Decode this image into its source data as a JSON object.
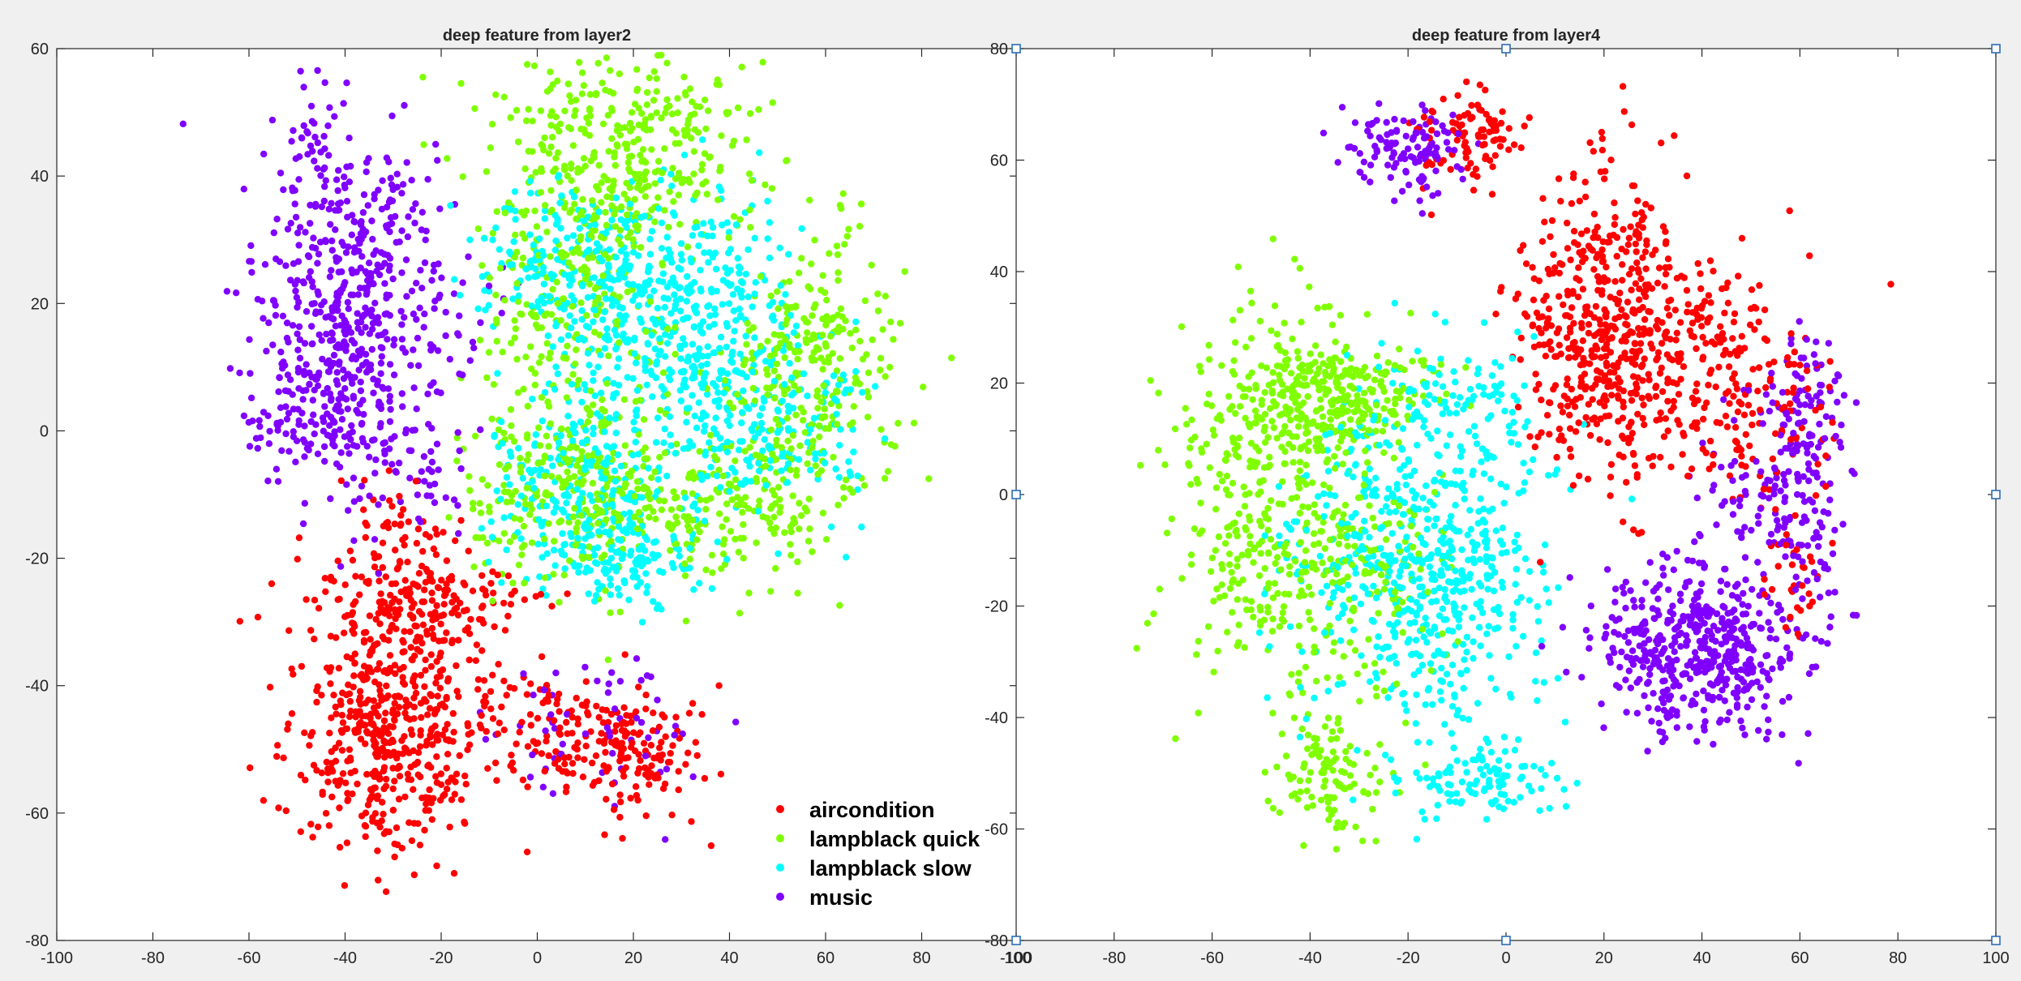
{
  "chart_data": [
    {
      "type": "scatter",
      "title": "deep feature from layer2",
      "xlabel": "",
      "ylabel": "",
      "xlim": [
        -100,
        100
      ],
      "ylim": [
        -80,
        60
      ],
      "xticks": [
        -100,
        -80,
        -60,
        -40,
        -20,
        0,
        20,
        40,
        60,
        80,
        100
      ],
      "yticks": [
        -80,
        -60,
        -40,
        -20,
        0,
        20,
        40,
        60
      ],
      "grid": false,
      "legend": {
        "placement": "bottom-right",
        "entries": [
          "aircondition",
          "lampblack quick",
          "lampblack slow",
          "music"
        ]
      },
      "series": [
        {
          "name": "aircondition",
          "color": "#ff0000",
          "clusters": [
            {
              "center": [
                -31,
                -47
              ],
              "spread": [
                10,
                10
              ],
              "count": 520
            },
            {
              "center": [
                -25,
                -27
              ],
              "spread": [
                11,
                5
              ],
              "count": 190
            },
            {
              "center": [
                -28,
                -14
              ],
              "spread": [
                6,
                4
              ],
              "count": 30
            },
            {
              "center": [
                20,
                -50
              ],
              "spread": [
                8,
                5
              ],
              "count": 150
            },
            {
              "center": [
                2,
                -46
              ],
              "spread": [
                6,
                6
              ],
              "count": 70
            }
          ]
        },
        {
          "name": "lampblack quick",
          "color": "#80ff00",
          "clusters": [
            {
              "center": [
                17,
                43
              ],
              "spread": [
                14,
                9
              ],
              "count": 400
            },
            {
              "center": [
                8,
                -8
              ],
              "spread": [
                12,
                8
              ],
              "count": 320
            },
            {
              "center": [
                57,
                9
              ],
              "spread": [
                9,
                11
              ],
              "count": 280
            },
            {
              "center": [
                4,
                20
              ],
              "spread": [
                8,
                8
              ],
              "count": 150
            },
            {
              "center": [
                40,
                -12
              ],
              "spread": [
                10,
                6
              ],
              "count": 150
            }
          ]
        },
        {
          "name": "lampblack slow",
          "color": "#00ffff",
          "clusters": [
            {
              "center": [
                28,
                18
              ],
              "spread": [
                13,
                9
              ],
              "count": 480
            },
            {
              "center": [
                10,
                -10
              ],
              "spread": [
                10,
                7
              ],
              "count": 230
            },
            {
              "center": [
                47,
                0
              ],
              "spread": [
                11,
                7
              ],
              "count": 200
            },
            {
              "center": [
                5,
                28
              ],
              "spread": [
                9,
                6
              ],
              "count": 150
            },
            {
              "center": [
                18,
                -20
              ],
              "spread": [
                8,
                4
              ],
              "count": 120
            }
          ]
        },
        {
          "name": "music",
          "color": "#8000ff",
          "clusters": [
            {
              "center": [
                -38,
                18
              ],
              "spread": [
                11,
                13
              ],
              "count": 560
            },
            {
              "center": [
                -48,
                2
              ],
              "spread": [
                6,
                6
              ],
              "count": 90
            },
            {
              "center": [
                -48,
                46
              ],
              "spread": [
                3,
                4
              ],
              "count": 25
            },
            {
              "center": [
                15,
                -48
              ],
              "spread": [
                12,
                7
              ],
              "count": 60
            },
            {
              "center": [
                -25,
                -8
              ],
              "spread": [
                6,
                5
              ],
              "count": 30
            }
          ]
        }
      ]
    },
    {
      "type": "scatter",
      "title": "deep feature from layer4",
      "xlabel": "",
      "ylabel": "",
      "xlim": [
        -100,
        100
      ],
      "ylim": [
        -80,
        80
      ],
      "xticks": [
        -100,
        -80,
        -60,
        -40,
        -20,
        0,
        20,
        40,
        60,
        80,
        100
      ],
      "yticks": [
        -80,
        -60,
        -40,
        -20,
        0,
        20,
        40,
        60,
        80
      ],
      "grid": false,
      "legend": null,
      "series": [
        {
          "name": "aircondition",
          "color": "#ff0000",
          "clusters": [
            {
              "center": [
                20,
                30
              ],
              "spread": [
                9,
                13
              ],
              "count": 500
            },
            {
              "center": [
                45,
                22
              ],
              "spread": [
                10,
                10
              ],
              "count": 220
            },
            {
              "center": [
                -8,
                64
              ],
              "spread": [
                5,
                4
              ],
              "count": 100
            },
            {
              "center": [
                59,
                -10
              ],
              "spread": [
                4,
                10
              ],
              "count": 40
            }
          ]
        },
        {
          "name": "lampblack quick",
          "color": "#80ff00",
          "clusters": [
            {
              "center": [
                -47,
                0
              ],
              "spread": [
                10,
                18
              ],
              "count": 450
            },
            {
              "center": [
                -35,
                18
              ],
              "spread": [
                10,
                5
              ],
              "count": 240
            },
            {
              "center": [
                -36,
                -50
              ],
              "spread": [
                5,
                6
              ],
              "count": 110
            },
            {
              "center": [
                -25,
                -15
              ],
              "spread": [
                8,
                10
              ],
              "count": 100
            }
          ]
        },
        {
          "name": "lampblack slow",
          "color": "#00ffff",
          "clusters": [
            {
              "center": [
                -12,
                -15
              ],
              "spread": [
                10,
                15
              ],
              "count": 420
            },
            {
              "center": [
                -30,
                -10
              ],
              "spread": [
                10,
                14
              ],
              "count": 180
            },
            {
              "center": [
                -10,
                15
              ],
              "spread": [
                10,
                6
              ],
              "count": 100
            },
            {
              "center": [
                -5,
                -51
              ],
              "spread": [
                8,
                3
              ],
              "count": 100
            }
          ]
        },
        {
          "name": "music",
          "color": "#8000ff",
          "clusters": [
            {
              "center": [
                40,
                -28
              ],
              "spread": [
                10,
                7
              ],
              "count": 480
            },
            {
              "center": [
                60,
                -3
              ],
              "spread": [
                5,
                12
              ],
              "count": 120
            },
            {
              "center": [
                -20,
                62
              ],
              "spread": [
                6,
                4
              ],
              "count": 120
            },
            {
              "center": [
                62,
                18
              ],
              "spread": [
                4,
                7
              ],
              "count": 60
            },
            {
              "center": [
                50,
                -2
              ],
              "spread": [
                6,
                8
              ],
              "count": 60
            }
          ]
        }
      ]
    }
  ]
}
